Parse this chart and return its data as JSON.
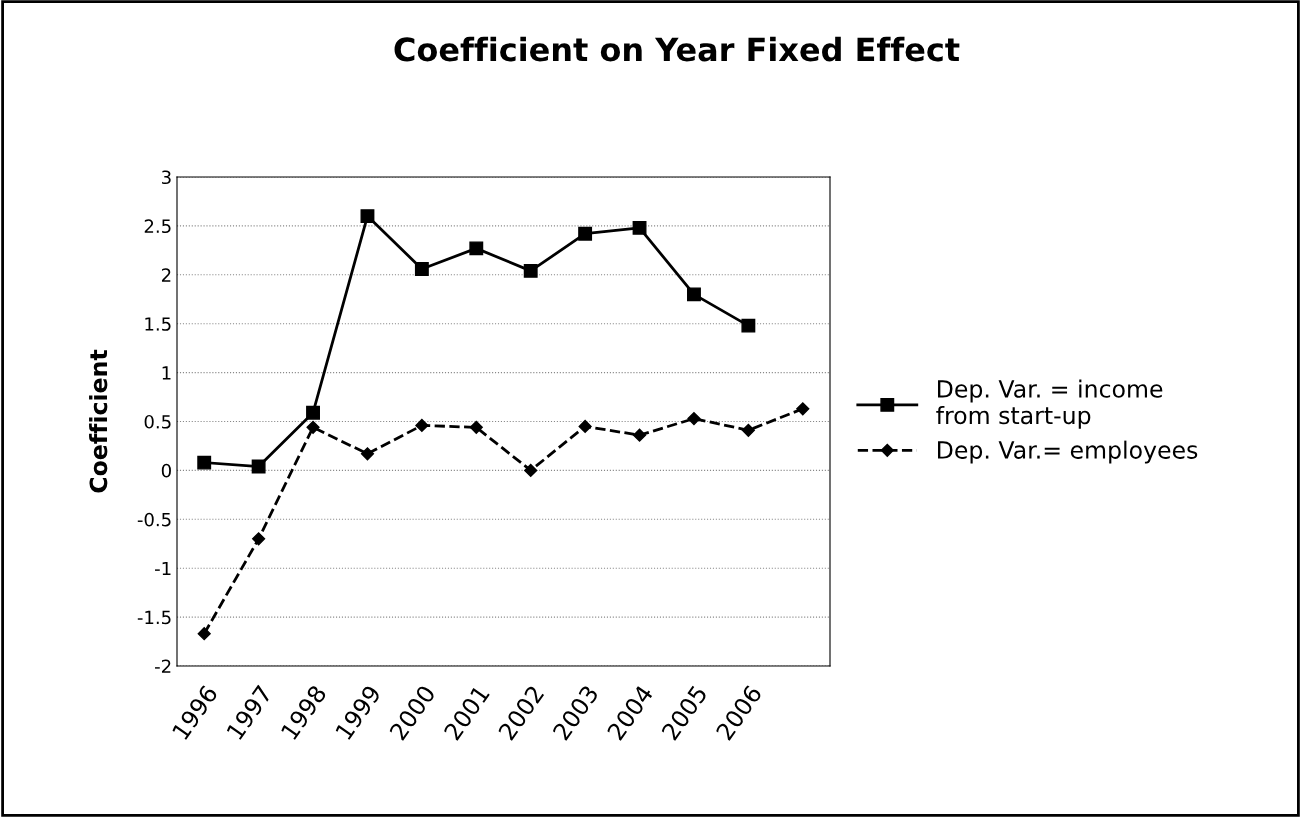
{
  "chart_data": {
    "type": "line",
    "title": "Coefficient on Year Fixed Effect",
    "ylabel": "Coefficient",
    "categories": [
      "1996",
      "1997",
      "1998",
      "1999",
      "2000",
      "2001",
      "2002",
      "2003",
      "2004",
      "2005",
      "2006",
      null
    ],
    "series": [
      {
        "name": "Dep. Var. = income from start-up",
        "color": "#000000",
        "marker": "square",
        "line_style": "solid",
        "values": [
          0.08,
          0.04,
          0.59,
          2.6,
          2.06,
          2.27,
          2.04,
          2.42,
          2.48,
          1.8,
          1.48,
          null
        ]
      },
      {
        "name": "Dep. Var.= employees",
        "color": "#000000",
        "marker": "diamond",
        "line_style": "dashed",
        "values": [
          -1.67,
          -0.7,
          0.44,
          0.17,
          0.46,
          0.44,
          0.0,
          0.45,
          0.36,
          0.53,
          0.41,
          0.63
        ]
      }
    ],
    "ylim": [
      -2,
      3
    ],
    "yticks": [
      -2,
      -1.5,
      -1,
      -0.5,
      0,
      0.5,
      1,
      1.5,
      2,
      2.5,
      3
    ],
    "grid": "y",
    "legend": "right"
  }
}
